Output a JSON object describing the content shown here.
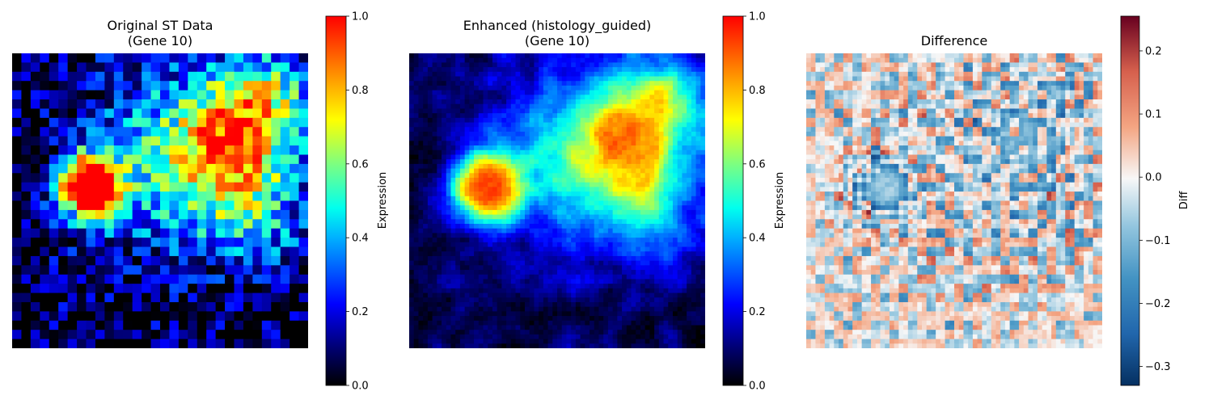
{
  "chart_data": [
    {
      "type": "heatmap",
      "title_lines": [
        "Original ST Data",
        "(Gene 10)"
      ],
      "grid_size": [
        32,
        32
      ],
      "colormap": "jet",
      "colorbar": {
        "label": "Expression",
        "range": [
          0.0,
          1.0
        ],
        "ticks": [
          "0.0",
          "0.2",
          "0.4",
          "0.6",
          "0.8",
          "1.0"
        ]
      },
      "description": "low-resolution pixelated expression map: saturated blob lower-left, high region upper-right, low background"
    },
    {
      "type": "heatmap",
      "title_lines": [
        "Enhanced (histology_guided)",
        "(Gene 10)"
      ],
      "colormap": "jet",
      "colorbar": {
        "label": "Expression",
        "range": [
          0.0,
          1.0
        ],
        "ticks": [
          "0.0",
          "0.2",
          "0.4",
          "0.6",
          "0.8",
          "1.0"
        ]
      },
      "description": "smoothed high-resolution version of the original map"
    },
    {
      "type": "heatmap",
      "title_lines": [
        "Difference"
      ],
      "colormap": "RdBu_r",
      "colorbar": {
        "label": "Diff",
        "range": [
          -0.33,
          0.255
        ],
        "ticks": [
          "0.2",
          "0.1",
          "0.0",
          "−0.1",
          "−0.2",
          "−0.3"
        ]
      },
      "description": "enhanced minus original: slightly positive background, negative values inside high-expression regions"
    }
  ]
}
